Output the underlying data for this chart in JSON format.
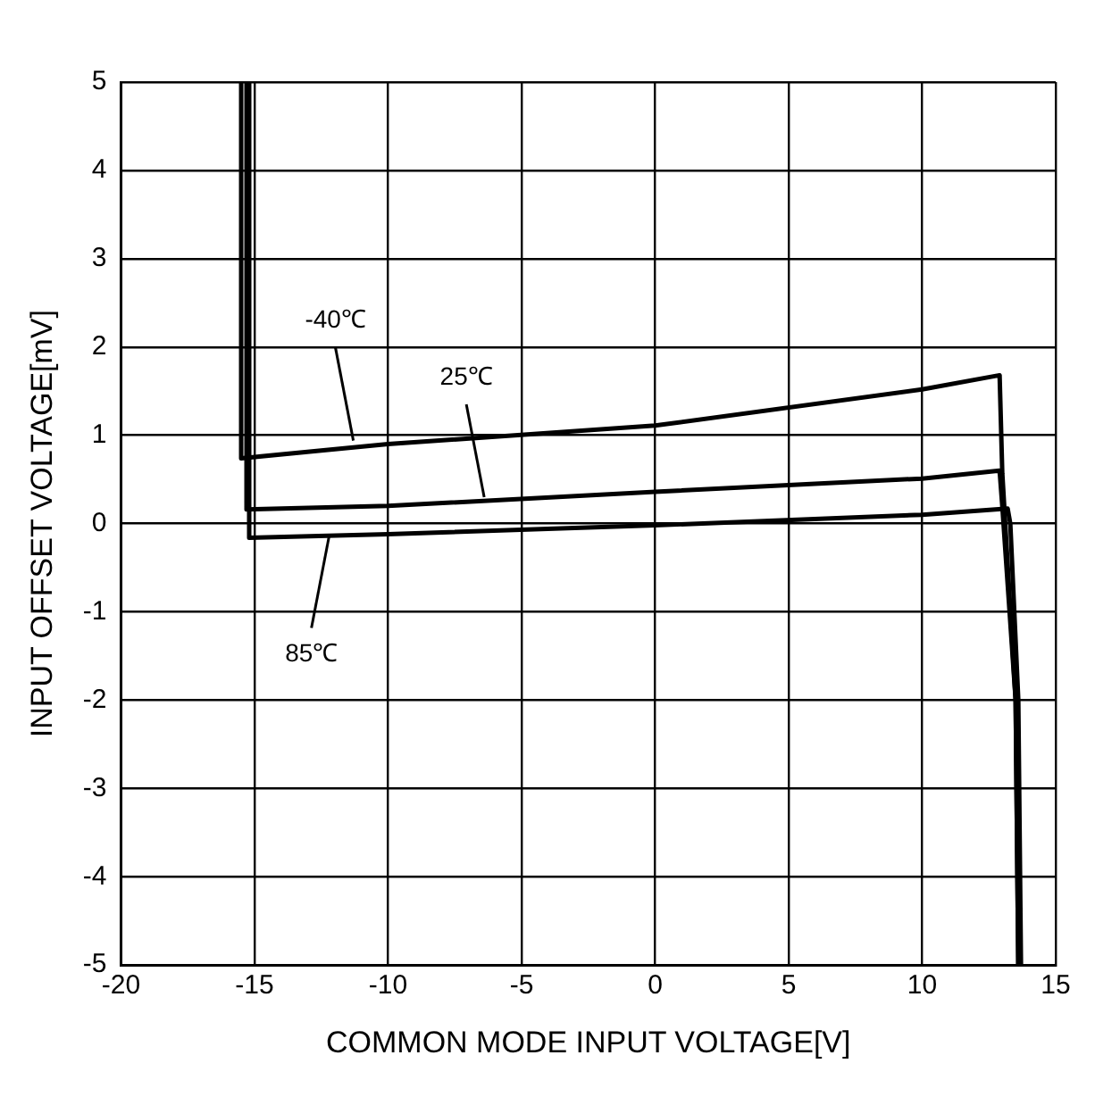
{
  "chart_data": {
    "type": "line",
    "xlabel": "COMMON MODE INPUT VOLTAGE[V]",
    "ylabel": "INPUT OFFSET VOLTAGE[mV]",
    "xlim": [
      -20,
      15
    ],
    "xticks": [
      -20,
      -15,
      -10,
      -5,
      0,
      5,
      10,
      15
    ],
    "ylim": [
      -5,
      5
    ],
    "yticks": [
      -5,
      -4,
      -3,
      -2,
      -1,
      0,
      1,
      2,
      3,
      4,
      5
    ],
    "grid": true,
    "legend": false,
    "marker": "none",
    "line_style": "solid",
    "series": [
      {
        "color": "#000000",
        "x": [
          -15.5,
          -15.5,
          -10,
          0,
          10,
          12.9,
          13.0,
          13.5,
          13.6
        ],
        "values": [
          5,
          0.74,
          0.9,
          1.11,
          1.52,
          1.68,
          0.57,
          -2,
          -5
        ]
      },
      {
        "color": "#000000",
        "x": [
          -15.3,
          -15.3,
          -10,
          0,
          10,
          12.9,
          13.0,
          13.5,
          13.6
        ],
        "values": [
          5,
          0.16,
          0.2,
          0.36,
          0.51,
          0.6,
          0.2,
          -2,
          -5
        ]
      },
      {
        "color": "#000000",
        "x": [
          -15.2,
          -15.2,
          -10,
          0,
          10,
          13.2,
          13.3,
          13.6,
          13.7
        ],
        "values": [
          5,
          -0.16,
          -0.12,
          -0.02,
          0.1,
          0.17,
          0,
          -2,
          -5
        ]
      }
    ],
    "annotations": [
      {
        "text": "-40℃",
        "x": -11.3,
        "y": 0.94
      },
      {
        "text": "25℃",
        "x": -6.4,
        "y": 0.3
      },
      {
        "text": "85℃",
        "x": -12.2,
        "y": -0.13
      }
    ]
  }
}
